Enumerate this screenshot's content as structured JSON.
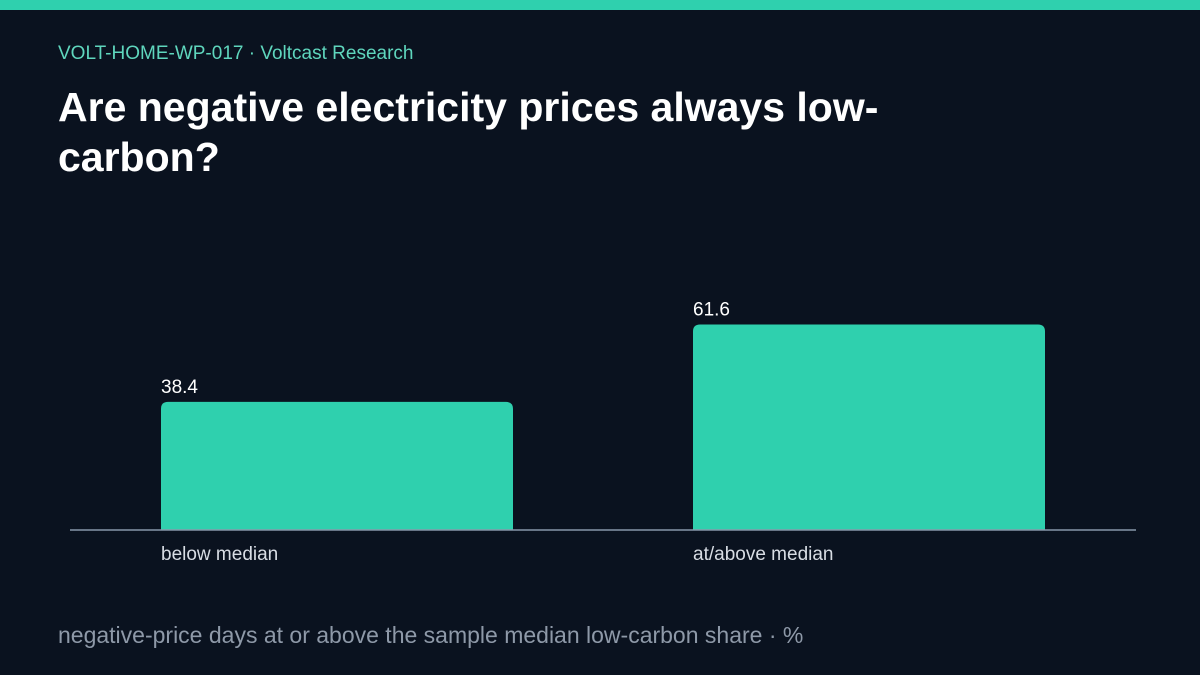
{
  "header": {
    "kicker": "VOLT-HOME-WP-017 · Voltcast Research",
    "title": "Are negative electricity prices always low-carbon?"
  },
  "caption": "negative-price days at or above the sample median low-carbon share · %",
  "colors": {
    "accent": "#2fd0ae",
    "background": "#0a121f",
    "axis": "#8897aa",
    "label": "#d8dde4",
    "value": "#ffffff"
  },
  "chart_data": {
    "type": "bar",
    "categories": [
      "below median",
      "at/above median"
    ],
    "values": [
      38.4,
      61.6
    ],
    "ylim": [
      0,
      75
    ],
    "grid": false,
    "legend": "none",
    "data_labels": true
  }
}
